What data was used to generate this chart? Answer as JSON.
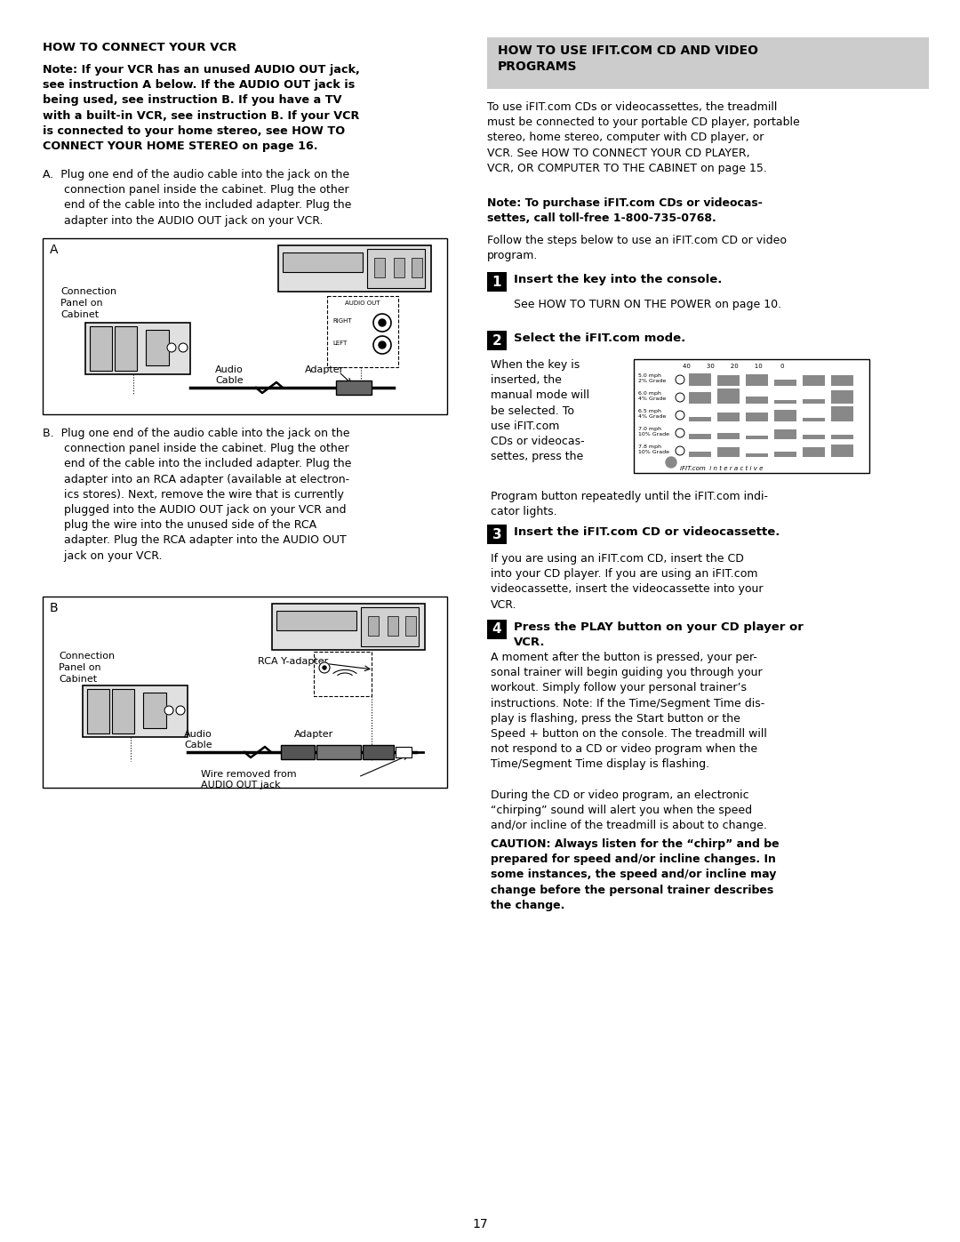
{
  "page_number": "17",
  "bg_color": "#ffffff",
  "text_color": "#000000",
  "heading_box_color": "#cccccc",
  "left": {
    "heading": "HOW TO CONNECT YOUR VCR",
    "bold_note": "Note: If your VCR has an unused AUDIO OUT jack,\nsee instruction A below. If the AUDIO OUT jack is\nbeing used, see instruction B. If you have a TV\nwith a built-in VCR, see instruction B. If your VCR\nis connected to your home stereo, see HOW TO\nCONNECT YOUR HOME STEREO on page 16.",
    "inst_a": "A.  Plug one end of the audio cable into the jack on the\n      connection panel inside the cabinet. Plug the other\n      end of the cable into the included adapter. Plug the\n      adapter into the AUDIO OUT jack on your VCR.",
    "inst_b": "B.  Plug one end of the audio cable into the jack on the\n      connection panel inside the cabinet. Plug the other\n      end of the cable into the included adapter. Plug the\n      adapter into an RCA adapter (available at electron-\n      ics stores). Next, remove the wire that is currently\n      plugged into the AUDIO OUT jack on your VCR and\n      plug the wire into the unused side of the RCA\n      adapter. Plug the RCA adapter into the AUDIO OUT\n      jack on your VCR."
  },
  "right": {
    "box_heading": "HOW TO USE IFIT.COM CD AND VIDEO\nPROGRAMS",
    "intro": "To use iFIT.com CDs or videocassettes, the treadmill\nmust be connected to your portable CD player, portable\nstereo, home stereo, computer with CD player, or\nVCR. See HOW TO CONNECT YOUR CD PLAYER,\nVCR, OR COMPUTER TO THE CABINET on page 15.",
    "note": "Note: To purchase iFIT.com CDs or videocas-\nsettes, call toll-free 1-800-735-0768.",
    "follow": "Follow the steps below to use an iFIT.com CD or video\nprogram.",
    "s1h": "Insert the key into the console.",
    "s1t": "See HOW TO TURN ON THE POWER on page 10.",
    "s2h": "Select the iFIT.com mode.",
    "s2t_left": "When the key is\ninserted, the\nmanual mode will\nbe selected. To\nuse iFIT.com\nCDs or videocas-\nsettes, press the",
    "s2t_cont": "Program button repeatedly until the iFIT.com indi-\ncator lights.",
    "s3h": "Insert the iFIT.com CD or videocassette.",
    "s3t": "If you are using an iFIT.com CD, insert the CD\ninto your CD player. If you are using an iFIT.com\nvideocassette, insert the videocassette into your\nVCR.",
    "s4h": "Press the PLAY button on your CD player or\nVCR.",
    "s4t": "A moment after the button is pressed, your per-\nsonal trainer will begin guiding you through your\nworkout. Simply follow your personal trainer’s\ninstructions. Note: If the Time/Segment Time dis-\nplay is flashing, press the Start button or the\nSpeed + button on the console. The treadmill will\nnot respond to a CD or video program when the\nTime/Segment Time display is flashing.",
    "during": "During the CD or video program, an electronic\n“chirping” sound will alert you when the speed\nand/or incline of the treadmill is about to change.",
    "caution": "CAUTION: Always listen for the “chirp” and be\nprepared for speed and/or incline changes. In\nsome instances, the speed and/or incline may\nchange before the personal trainer describes\nthe change."
  }
}
